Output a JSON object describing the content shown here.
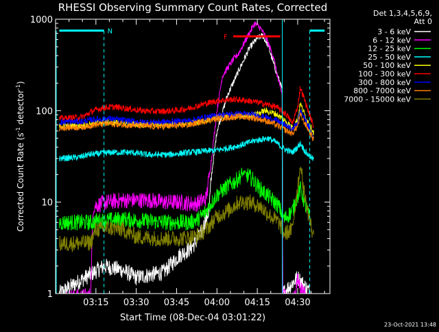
{
  "chart_data": {
    "type": "line",
    "title": "RHESSI Observing Summary Count Rates, Corrected",
    "xlabel": "Start Time (08-Dec-04 03:01:22)",
    "ylabel": "Corrected Count Rate (s",
    "ylabel_sup": "-1",
    "ylabel_tail": " detector",
    "ylabel_sup2": "-1",
    "ylabel_close": ")",
    "yscale": "log",
    "ylim": [
      1,
      1000
    ],
    "y_ticks": [
      {
        "value": 1,
        "label": "1"
      },
      {
        "value": 10,
        "label": "10"
      },
      {
        "value": 100,
        "label": "100"
      },
      {
        "value": 1000,
        "label": "1000"
      }
    ],
    "xlim_min": [
      3.0,
      4.7
    ],
    "x_ticks": [
      {
        "value": 195,
        "label": "03:15"
      },
      {
        "value": 210,
        "label": "03:30"
      },
      {
        "value": 225,
        "label": "03:45"
      },
      {
        "value": 240,
        "label": "04:00"
      },
      {
        "value": 255,
        "label": "04:15"
      },
      {
        "value": 270,
        "label": "04:30"
      }
    ],
    "legend_header": [
      "Det 1,3,4,5,6,9,",
      "Att 0"
    ],
    "legend_position": "right",
    "series": [
      {
        "name": "3 - 6 keV",
        "color": "#ffffff",
        "points": [
          [
            181.4,
            1
          ],
          [
            198,
            2
          ],
          [
            205,
            1.8
          ],
          [
            210,
            1.5
          ],
          [
            215,
            1.6
          ],
          [
            220,
            1.7
          ],
          [
            226,
            2.6
          ],
          [
            230,
            3.1
          ],
          [
            232,
            3.6
          ],
          [
            234,
            4.5
          ],
          [
            237,
            8
          ],
          [
            238,
            20
          ],
          [
            240,
            60
          ],
          [
            244,
            150
          ],
          [
            248,
            270
          ],
          [
            252,
            480
          ],
          [
            255,
            620
          ],
          [
            257,
            660
          ],
          [
            259,
            520
          ],
          [
            261,
            330
          ],
          [
            263,
            220
          ],
          [
            264.3,
            170
          ],
          [
            264.4,
            1
          ],
          [
            270,
            1.5
          ],
          [
            275,
            1
          ]
        ]
      },
      {
        "name": "6 - 12 keV",
        "color": "#ff00ff",
        "points": [
          [
            183,
            0.9
          ],
          [
            193,
            0.95
          ],
          [
            194,
            9
          ],
          [
            199,
            10
          ],
          [
            205,
            10.5
          ],
          [
            215,
            10.5
          ],
          [
            220,
            10
          ],
          [
            226,
            10
          ],
          [
            232,
            9.5
          ],
          [
            236,
            11
          ],
          [
            238,
            30
          ],
          [
            240,
            100
          ],
          [
            242,
            240
          ],
          [
            246,
            360
          ],
          [
            248,
            420
          ],
          [
            252,
            700
          ],
          [
            254,
            900
          ],
          [
            256,
            810
          ],
          [
            258,
            650
          ],
          [
            261,
            390
          ],
          [
            263,
            200
          ],
          [
            264.3,
            150
          ],
          [
            264.4,
            1
          ],
          [
            268,
            0.8
          ],
          [
            270,
            1.4
          ],
          [
            273,
            0.9
          ]
        ]
      },
      {
        "name": "12 - 25 keV",
        "color": "#00ff00",
        "points": [
          [
            181.4,
            6
          ],
          [
            194,
            6
          ],
          [
            195,
            6.2
          ],
          [
            205,
            6.5
          ],
          [
            214,
            6.2
          ],
          [
            222,
            6
          ],
          [
            230,
            6
          ],
          [
            233,
            6.5
          ],
          [
            236,
            8
          ],
          [
            240,
            12
          ],
          [
            244,
            15
          ],
          [
            247,
            17
          ],
          [
            250,
            21
          ],
          [
            253,
            18
          ],
          [
            256,
            14
          ],
          [
            260,
            11
          ],
          [
            263,
            9
          ],
          [
            265,
            6.5
          ],
          [
            268,
            8
          ],
          [
            271,
            14
          ],
          [
            273,
            9
          ],
          [
            275,
            6
          ]
        ]
      },
      {
        "name": "25 - 50 keV",
        "color": "#00ffff",
        "points": [
          [
            181.4,
            30
          ],
          [
            189,
            31
          ],
          [
            192,
            33
          ],
          [
            201,
            35
          ],
          [
            208,
            35
          ],
          [
            214,
            33
          ],
          [
            222,
            33
          ],
          [
            230,
            35
          ],
          [
            235,
            36
          ],
          [
            240,
            37
          ],
          [
            246,
            40
          ],
          [
            250,
            43
          ],
          [
            254,
            47
          ],
          [
            259,
            50
          ],
          [
            262,
            45
          ],
          [
            265,
            38
          ],
          [
            268,
            35
          ],
          [
            270,
            40
          ],
          [
            271,
            44
          ],
          [
            273,
            35
          ],
          [
            276,
            29
          ]
        ]
      },
      {
        "name": "50 - 100 keV",
        "color": "#ffff00",
        "points": [
          [
            181.4,
            68
          ],
          [
            189,
            68
          ],
          [
            193,
            72
          ],
          [
            199,
            75
          ],
          [
            205,
            73
          ],
          [
            210,
            71
          ],
          [
            216,
            70
          ],
          [
            222,
            70
          ],
          [
            228,
            72
          ],
          [
            234,
            75
          ],
          [
            240,
            85
          ],
          [
            246,
            88
          ],
          [
            250,
            87
          ],
          [
            254,
            90
          ],
          [
            258,
            100
          ],
          [
            262,
            92
          ],
          [
            266,
            75
          ],
          [
            268,
            65
          ],
          [
            270,
            80
          ],
          [
            271,
            120
          ],
          [
            273,
            85
          ],
          [
            276,
            57
          ]
        ]
      },
      {
        "name": "100 - 300 keV",
        "color": "#ff0000",
        "points": [
          [
            181.4,
            82
          ],
          [
            190,
            85
          ],
          [
            194,
            100
          ],
          [
            198,
            108
          ],
          [
            202,
            110
          ],
          [
            207,
            105
          ],
          [
            212,
            100
          ],
          [
            218,
            98
          ],
          [
            224,
            100
          ],
          [
            229,
            105
          ],
          [
            235,
            118
          ],
          [
            240,
            128
          ],
          [
            246,
            133
          ],
          [
            250,
            130
          ],
          [
            254,
            125
          ],
          [
            258,
            118
          ],
          [
            262,
            110
          ],
          [
            266,
            90
          ],
          [
            268,
            72
          ],
          [
            270,
            110
          ],
          [
            271,
            180
          ],
          [
            273,
            120
          ],
          [
            276,
            66
          ]
        ]
      },
      {
        "name": "300 - 800 keV",
        "color": "#0000ff",
        "points": [
          [
            181.4,
            75
          ],
          [
            190,
            76
          ],
          [
            194,
            80
          ],
          [
            200,
            82
          ],
          [
            206,
            78
          ],
          [
            212,
            75
          ],
          [
            218,
            75
          ],
          [
            224,
            76
          ],
          [
            230,
            78
          ],
          [
            236,
            85
          ],
          [
            242,
            90
          ],
          [
            248,
            92
          ],
          [
            254,
            90
          ],
          [
            258,
            85
          ],
          [
            262,
            78
          ],
          [
            266,
            68
          ],
          [
            268,
            62
          ],
          [
            270,
            75
          ],
          [
            271,
            100
          ],
          [
            273,
            78
          ],
          [
            276,
            50
          ]
        ]
      },
      {
        "name": "800 - 7000 keV",
        "color": "#ff8000",
        "points": [
          [
            181.4,
            65
          ],
          [
            190,
            66
          ],
          [
            194,
            70
          ],
          [
            200,
            72
          ],
          [
            206,
            70
          ],
          [
            212,
            68
          ],
          [
            218,
            67
          ],
          [
            224,
            68
          ],
          [
            230,
            70
          ],
          [
            236,
            78
          ],
          [
            242,
            83
          ],
          [
            248,
            86
          ],
          [
            254,
            83
          ],
          [
            258,
            78
          ],
          [
            262,
            70
          ],
          [
            266,
            60
          ],
          [
            268,
            56
          ],
          [
            270,
            68
          ],
          [
            271,
            90
          ],
          [
            273,
            70
          ],
          [
            276,
            48
          ]
        ]
      },
      {
        "name": "7000 - 15000 keV",
        "color": "#808000",
        "points": [
          [
            181.4,
            3.5
          ],
          [
            193,
            3.6
          ],
          [
            195,
            5
          ],
          [
            200,
            5.2
          ],
          [
            205,
            5
          ],
          [
            210,
            4.2
          ],
          [
            218,
            4
          ],
          [
            226,
            4
          ],
          [
            232,
            4.2
          ],
          [
            236,
            5
          ],
          [
            240,
            7
          ],
          [
            244,
            8
          ],
          [
            248,
            10
          ],
          [
            252,
            10
          ],
          [
            256,
            9
          ],
          [
            260,
            7
          ],
          [
            263,
            6
          ],
          [
            265,
            4.5
          ],
          [
            268,
            5
          ],
          [
            270,
            15
          ],
          [
            271,
            25
          ],
          [
            273,
            10
          ],
          [
            276,
            4
          ]
        ]
      }
    ],
    "markers": {
      "n_label": "N",
      "f_label": "F",
      "n_bars": [
        [
          181.4,
          198
        ],
        [
          274.5,
          280
        ]
      ],
      "n_level": 750,
      "f_bar": [
        246,
        263.5
      ],
      "f_level": 650,
      "dashed_lines": [
        198,
        274.5
      ],
      "solid_lines": [
        264.3
      ]
    },
    "timestamp": "23-Oct-2021 13:48"
  }
}
